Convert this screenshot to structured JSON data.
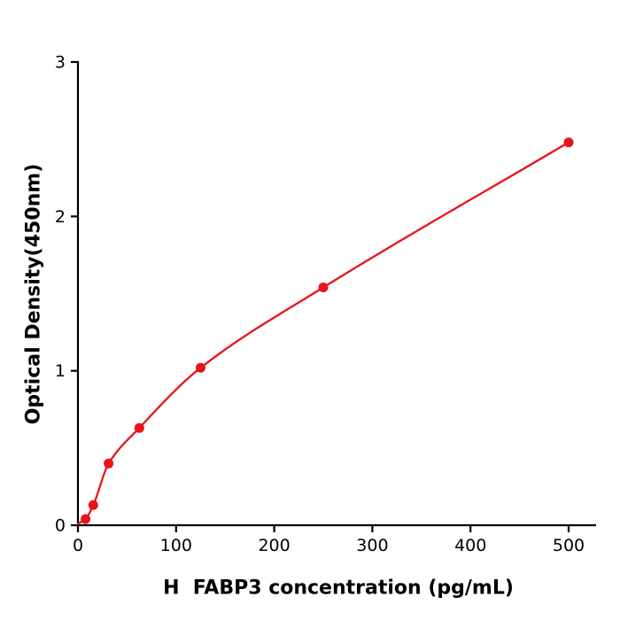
{
  "chart_data": {
    "type": "scatter",
    "title": "",
    "xlabel": "H  FABP3 concentration (pg/mL)",
    "ylabel": "Optical Density(450nm)",
    "x_ticks": [
      0,
      100,
      200,
      300,
      400,
      500
    ],
    "y_ticks": [
      0,
      1,
      2,
      3
    ],
    "xlim": [
      0,
      527
    ],
    "ylim": [
      0,
      3
    ],
    "grid": false,
    "legend": false,
    "marker_color": "#e8141b",
    "line_color": "#e8141b",
    "axis_color": "#000000",
    "points": {
      "x": [
        7.8,
        15.6,
        31.25,
        62.5,
        125,
        250,
        500
      ],
      "y": [
        0.04,
        0.13,
        0.4,
        0.63,
        1.02,
        1.54,
        2.48
      ]
    },
    "fit_curve_start": [
      0,
      0.01
    ]
  }
}
